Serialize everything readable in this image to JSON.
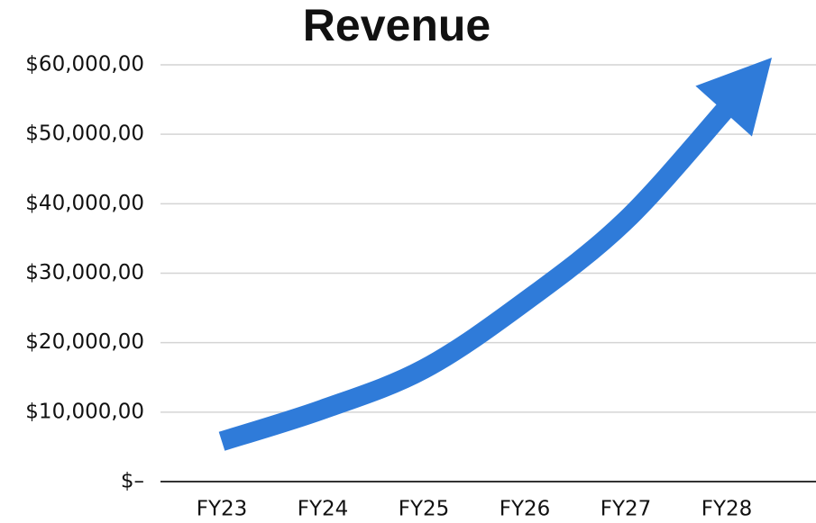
{
  "chart_data": {
    "type": "line",
    "title": "Revenue",
    "categories": [
      "FY23",
      "FY24",
      "FY25",
      "FY26",
      "FY27",
      "FY28"
    ],
    "values": [
      5800,
      10400,
      16200,
      25900,
      37600,
      53800
    ],
    "color": "#2f7bd9",
    "ylim": [
      0,
      60000
    ],
    "yticks": [
      {
        "value": 0,
        "label": "$–"
      },
      {
        "value": 10000,
        "label": "$10,000,00"
      },
      {
        "value": 20000,
        "label": "$20,000,00"
      },
      {
        "value": 30000,
        "label": "$30,000,00"
      },
      {
        "value": 40000,
        "label": "$40,000,00"
      },
      {
        "value": 50000,
        "label": "$50,000,00"
      },
      {
        "value": 60000,
        "label": "$60,000,00"
      }
    ],
    "grid": true
  }
}
